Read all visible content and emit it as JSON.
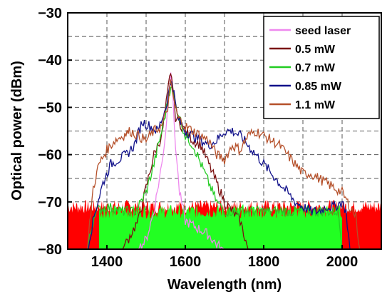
{
  "chart_data": {
    "type": "line",
    "title": "",
    "xlabel": "Wavelength (nm)",
    "ylabel": "Optical power (dBm)",
    "xlim": [
      1300,
      2100
    ],
    "ylim": [
      -80,
      -30
    ],
    "xticks": [
      1400,
      1600,
      1800,
      2000
    ],
    "yticks": [
      -30,
      -40,
      -50,
      -60,
      -70,
      -80
    ],
    "grid": true,
    "legend_position": "top-right",
    "series": [
      {
        "name": "seed laser",
        "color": "#ee88ee",
        "x": [
          1300,
          1380,
          1440,
          1480,
          1500,
          1520,
          1540,
          1550,
          1558,
          1563,
          1568,
          1575,
          1585,
          1600,
          1620,
          1640,
          1660,
          1680,
          1700,
          1720,
          1800,
          1900,
          2000,
          2100
        ],
        "y": [
          -80,
          -80,
          -80,
          -80,
          -78,
          -72,
          -62,
          -55,
          -46,
          -42,
          -48,
          -58,
          -68,
          -74,
          -75,
          -76,
          -77,
          -79,
          -80,
          -80,
          -80,
          -80,
          -80,
          -80
        ]
      },
      {
        "name": "0.5 mW",
        "color": "#7a1010",
        "x": [
          1300,
          1380,
          1440,
          1480,
          1500,
          1520,
          1540,
          1560,
          1565,
          1575,
          1600,
          1620,
          1640,
          1660,
          1680,
          1700,
          1720,
          1740,
          1760,
          1800,
          1900,
          2000,
          2100
        ],
        "y": [
          -80,
          -80,
          -80,
          -74,
          -67,
          -60,
          -56,
          -44,
          -43,
          -52,
          -55,
          -57,
          -58,
          -62,
          -66,
          -70,
          -72,
          -74,
          -80,
          -80,
          -80,
          -80,
          -80
        ]
      },
      {
        "name": "0.7 mW",
        "color": "#22cc22",
        "x": [
          1300,
          1350,
          1370,
          1400,
          1440,
          1470,
          1480,
          1500,
          1520,
          1540,
          1555,
          1563,
          1570,
          1585,
          1600,
          1620,
          1640,
          1660,
          1680,
          1690,
          1700,
          1720,
          1760,
          1800,
          1850,
          1900,
          1950,
          1990,
          2000,
          2100
        ],
        "y": [
          -80,
          -80,
          -72,
          -71,
          -72,
          -72,
          -71,
          -68,
          -62,
          -55,
          -49,
          -45,
          -48,
          -52,
          -56,
          -58,
          -62,
          -66,
          -70,
          -71,
          -72,
          -72,
          -72,
          -72,
          -72,
          -72,
          -72,
          -72,
          -80,
          -80
        ]
      },
      {
        "name": "0.85 mW",
        "color": "#10108a",
        "x": [
          1300,
          1350,
          1370,
          1390,
          1410,
          1430,
          1450,
          1470,
          1490,
          1510,
          1530,
          1550,
          1560,
          1565,
          1580,
          1600,
          1620,
          1640,
          1660,
          1680,
          1700,
          1720,
          1740,
          1760,
          1780,
          1800,
          1820,
          1840,
          1860,
          1880,
          1900,
          1920,
          1940,
          1960,
          1980,
          2000,
          2010,
          2020,
          2100
        ],
        "y": [
          -80,
          -80,
          -72,
          -66,
          -62,
          -61,
          -60,
          -58,
          -53,
          -54,
          -55,
          -50,
          -46,
          -44,
          -52,
          -55,
          -56,
          -57,
          -58,
          -57,
          -55,
          -55,
          -56,
          -58,
          -60,
          -62,
          -64,
          -66,
          -68,
          -70,
          -71,
          -72,
          -72,
          -71,
          -71,
          -70,
          -72,
          -80,
          -80
        ]
      },
      {
        "name": "1.1 mW",
        "color": "#b5502a",
        "x": [
          1300,
          1350,
          1365,
          1380,
          1400,
          1420,
          1440,
          1460,
          1480,
          1500,
          1520,
          1540,
          1555,
          1562,
          1570,
          1580,
          1600,
          1620,
          1640,
          1660,
          1680,
          1700,
          1720,
          1740,
          1760,
          1780,
          1800,
          1820,
          1840,
          1860,
          1880,
          1900,
          1920,
          1940,
          1960,
          1980,
          2000,
          2020,
          2035,
          2045,
          2100
        ],
        "y": [
          -80,
          -80,
          -67,
          -62,
          -59,
          -57,
          -56,
          -55,
          -56,
          -57,
          -55,
          -54,
          -50,
          -45,
          -48,
          -52,
          -54,
          -55,
          -56,
          -57,
          -60,
          -61,
          -58,
          -59,
          -56,
          -55,
          -56,
          -57,
          -58,
          -60,
          -62,
          -64,
          -64,
          -65,
          -66,
          -67,
          -68,
          -71,
          -73,
          -80,
          -80
        ]
      }
    ],
    "background_noise_fills": [
      {
        "color": "#ff0000",
        "x": [
          1300,
          2100
        ],
        "level": -71
      },
      {
        "color": "#22ff22",
        "x": [
          1380,
          2000
        ],
        "level": -72
      }
    ]
  }
}
